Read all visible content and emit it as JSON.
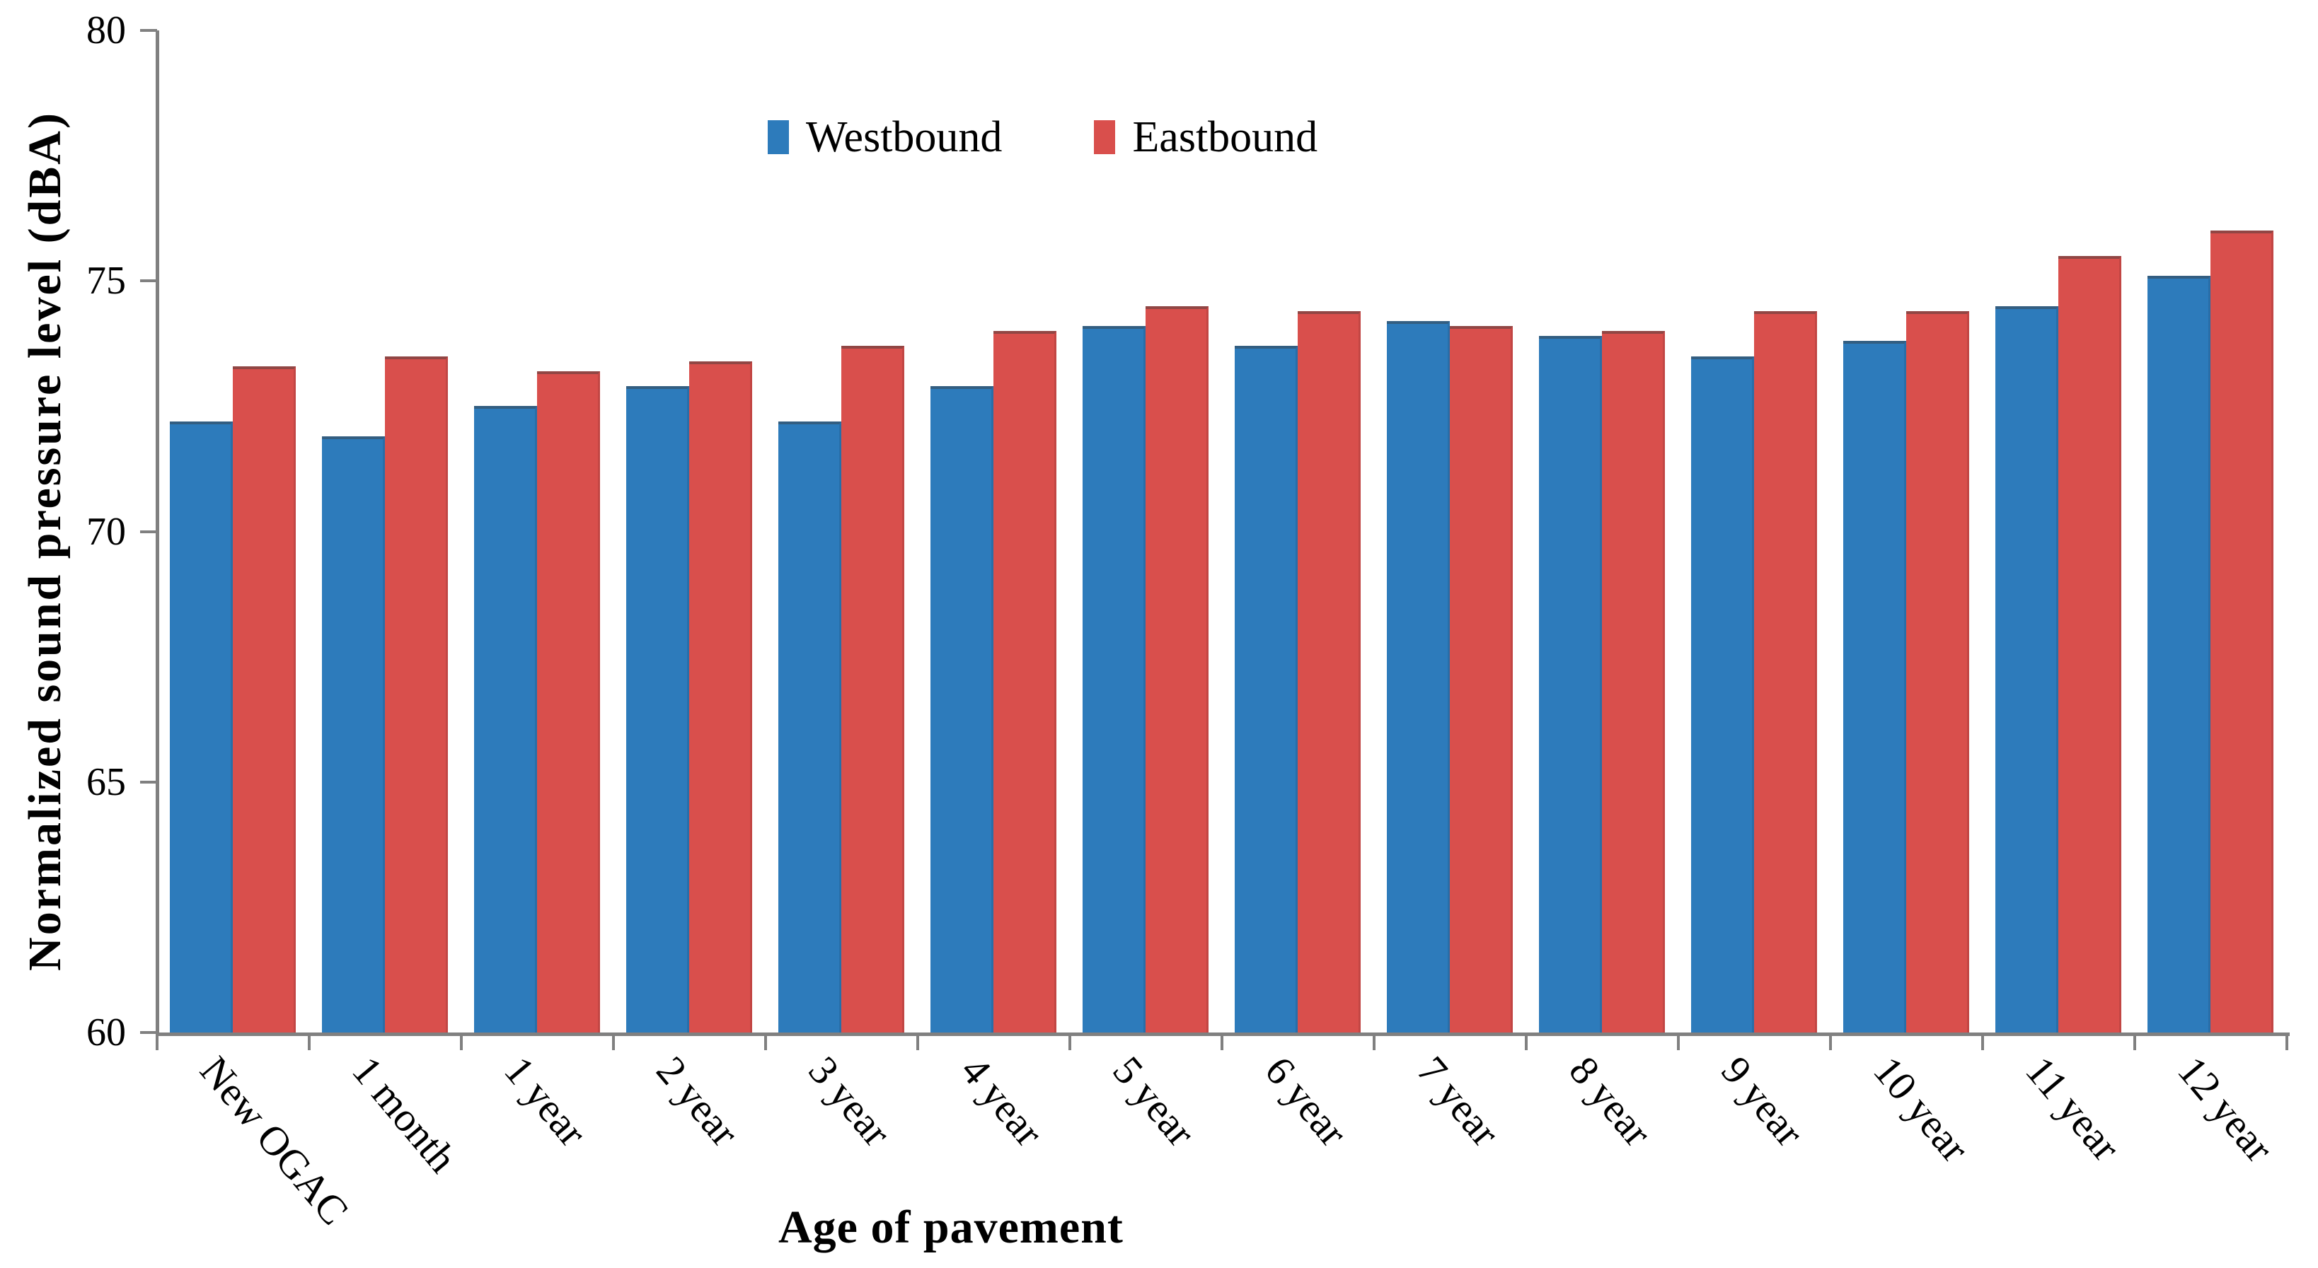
{
  "chart_data": {
    "type": "bar",
    "title": "",
    "xlabel": "Age of pavement",
    "ylabel": "Normalized sound pressure level (dBA)",
    "ylim": [
      60,
      80
    ],
    "yticks": [
      60,
      65,
      70,
      75,
      80
    ],
    "grid": false,
    "legend_position": "top-center",
    "categories": [
      "New OGAC",
      "1 month",
      "1 year",
      "2 year",
      "3 year",
      "4 year",
      "5 year",
      "6 year",
      "7 year",
      "8 year",
      "9 year",
      "10 year",
      "11 year",
      "12 year"
    ],
    "series": [
      {
        "name": "Westbound",
        "color": "#2D7BBB",
        "values": [
          72.2,
          71.9,
          72.5,
          72.9,
          72.2,
          72.9,
          74.1,
          73.7,
          74.2,
          73.9,
          73.5,
          73.8,
          74.5,
          75.1
        ]
      },
      {
        "name": "Eastbound",
        "color": "#D94F4C",
        "values": [
          73.3,
          73.5,
          73.2,
          73.4,
          73.7,
          74.0,
          74.5,
          74.4,
          74.1,
          74.0,
          74.4,
          74.4,
          75.5,
          76.0
        ]
      }
    ]
  },
  "colors": {
    "axis": "#808080",
    "text": "#000000",
    "background": "#FFFFFF"
  }
}
